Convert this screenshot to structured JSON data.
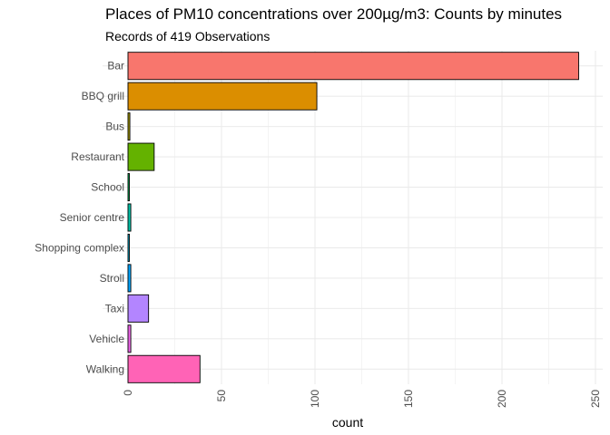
{
  "chart_data": {
    "type": "bar",
    "orientation": "horizontal",
    "title": "Places of PM10 concentrations over 200µg/m3: Counts by minutes",
    "subtitle": "Records of 419 Observations",
    "xlabel": "count",
    "ylabel": "",
    "categories": [
      "Bar",
      "BBQ grill",
      "Bus",
      "Restaurant",
      "School",
      "Senior centre",
      "Shopping complex",
      "Stroll",
      "Taxi",
      "Vehicle",
      "Walking"
    ],
    "values": [
      241,
      101,
      1,
      14,
      0.5,
      1.5,
      0.5,
      1.5,
      11,
      1.5,
      38.5
    ],
    "colors": [
      "#F8766D",
      "#DB8E00",
      "#AEA200",
      "#64B200",
      "#00BD5C",
      "#00C1A7",
      "#00BADE",
      "#00A6FF",
      "#B385FF",
      "#EF67EB",
      "#FF63B6"
    ],
    "xticks": [
      0,
      50,
      100,
      150,
      200,
      250
    ],
    "xlim": [
      -2.5,
      252
    ],
    "grid": true,
    "legend": "none"
  }
}
